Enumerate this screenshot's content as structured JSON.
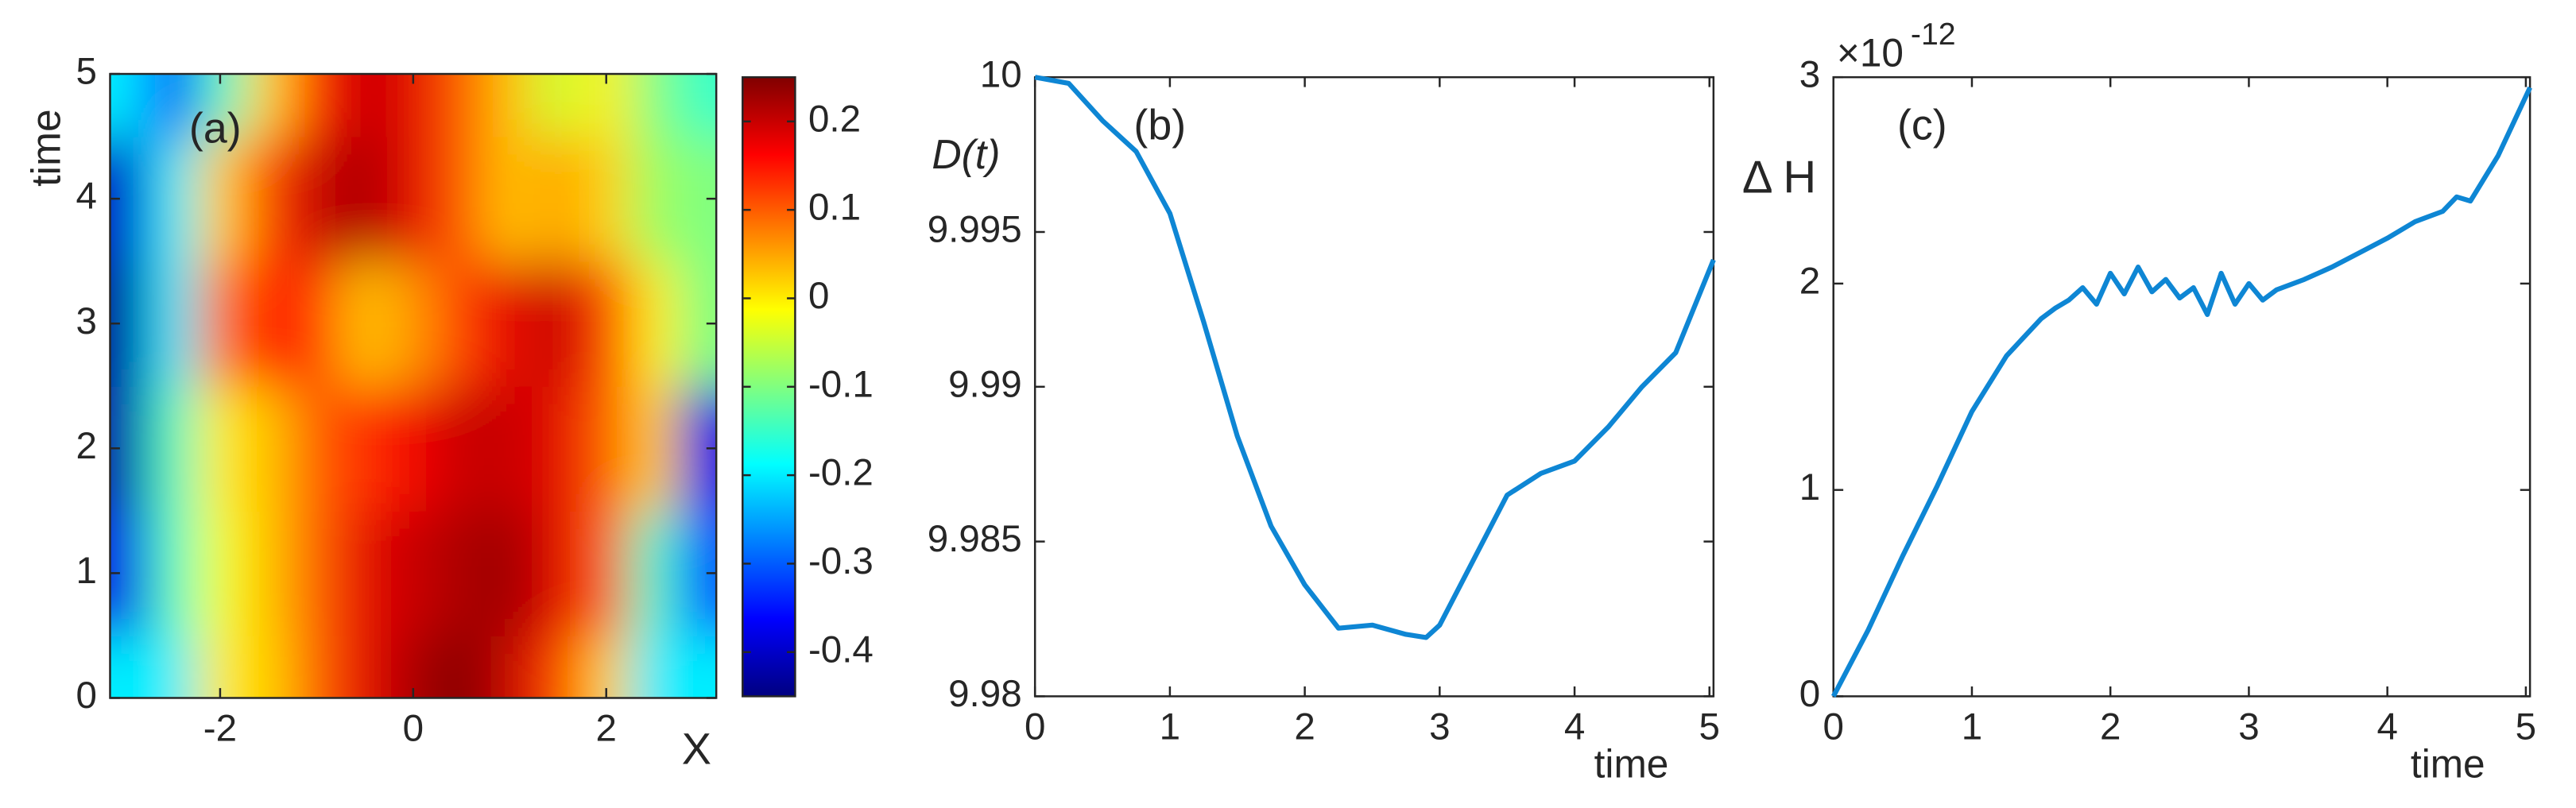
{
  "chart_data": [
    {
      "type": "heatmap",
      "panel_label": "(a)",
      "xlabel": "X",
      "ylabel": "time",
      "colormap": "jet",
      "x": [
        -3,
        -2.5,
        -2,
        -1.5,
        -1,
        -0.5,
        0,
        0.5,
        1,
        1.5,
        2,
        2.5,
        3
      ],
      "y": [
        0,
        1,
        2,
        3,
        4,
        5
      ],
      "z": [
        [
          -0.2,
          -0.2,
          0,
          0.02,
          0.1,
          0.18,
          0.22,
          0.25,
          0.2,
          0.12,
          0.02,
          -0.2,
          -0.2
        ],
        [
          -0.38,
          -0.15,
          -0.02,
          0.03,
          0.1,
          0.18,
          0.2,
          0.22,
          0.23,
          0.18,
          0.1,
          -0.15,
          -0.3
        ],
        [
          -0.42,
          -0.15,
          0,
          0.03,
          0.1,
          0.13,
          0.17,
          0.2,
          0.2,
          0.18,
          0.1,
          0.02,
          -0.38
        ],
        [
          -0.43,
          -0.2,
          0.08,
          0.15,
          0.12,
          0.03,
          0.06,
          0.12,
          0.18,
          0.2,
          0.12,
          0,
          -0.1
        ],
        [
          -0.4,
          -0.2,
          0.02,
          0.12,
          0.2,
          0.22,
          0.18,
          0.1,
          0.03,
          0.05,
          0.02,
          -0.08,
          -0.1
        ],
        [
          -0.2,
          -0.35,
          -0.15,
          0.02,
          0.15,
          0.2,
          0.18,
          0.1,
          0.03,
          -0.05,
          0,
          -0.1,
          -0.15
        ]
      ],
      "xlim": [
        -3.14,
        3.14
      ],
      "xticks": [
        -2,
        0,
        2
      ],
      "ylim": [
        0,
        5
      ],
      "yticks": [
        0,
        1,
        2,
        3,
        4,
        5
      ],
      "clim": [
        -0.45,
        0.25
      ],
      "cticks": [
        -0.4,
        -0.3,
        -0.2,
        -0.1,
        0,
        0.1,
        0.2
      ]
    },
    {
      "type": "line",
      "panel_label": "(b)",
      "xlabel": "time",
      "ylabel": "D(t)",
      "color": "#0e86d4",
      "x": [
        0,
        0.25,
        0.5,
        0.75,
        1,
        1.25,
        1.5,
        1.75,
        2,
        2.25,
        2.5,
        2.75,
        2.9,
        3,
        3.25,
        3.5,
        3.75,
        4,
        4.25,
        4.5,
        4.75,
        5.03
      ],
      "values": [
        10,
        9.9998,
        9.9986,
        9.9976,
        9.9956,
        9.9921,
        9.9884,
        9.9855,
        9.9836,
        9.9822,
        9.9823,
        9.982,
        9.9819,
        9.9823,
        9.9844,
        9.9865,
        9.9872,
        9.9876,
        9.9887,
        9.99,
        9.9911,
        9.9941
      ],
      "xlim": [
        0,
        5.03
      ],
      "xticks": [
        0,
        1,
        2,
        3,
        4,
        5
      ],
      "ylim": [
        9.98,
        10
      ],
      "yticks": [
        9.98,
        9.985,
        9.99,
        9.995,
        10
      ]
    },
    {
      "type": "line",
      "panel_label": "(c)",
      "xlabel": "time",
      "ylabel": "Δ H",
      "y_multiplier": "×10",
      "y_exponent": "-12",
      "color": "#0e86d4",
      "x": [
        0,
        0.25,
        0.5,
        0.75,
        1,
        1.25,
        1.5,
        1.6,
        1.7,
        1.8,
        1.9,
        2.0,
        2.1,
        2.2,
        2.3,
        2.4,
        2.5,
        2.6,
        2.7,
        2.8,
        2.9,
        3.0,
        3.1,
        3.2,
        3.4,
        3.6,
        3.8,
        4.0,
        4.2,
        4.4,
        4.5,
        4.6,
        4.8,
        5.03
      ],
      "values": [
        0,
        0.32,
        0.68,
        1.02,
        1.38,
        1.65,
        1.83,
        1.88,
        1.92,
        1.98,
        1.9,
        2.05,
        1.95,
        2.08,
        1.96,
        2.02,
        1.93,
        1.98,
        1.85,
        2.05,
        1.9,
        2.0,
        1.92,
        1.97,
        2.02,
        2.08,
        2.15,
        2.22,
        2.3,
        2.35,
        2.42,
        2.4,
        2.62,
        2.95
      ],
      "xlim": [
        0,
        5.03
      ],
      "xticks": [
        0,
        1,
        2,
        3,
        4,
        5
      ],
      "ylim": [
        0,
        3
      ],
      "yticks": [
        0,
        1,
        2,
        3
      ]
    }
  ]
}
